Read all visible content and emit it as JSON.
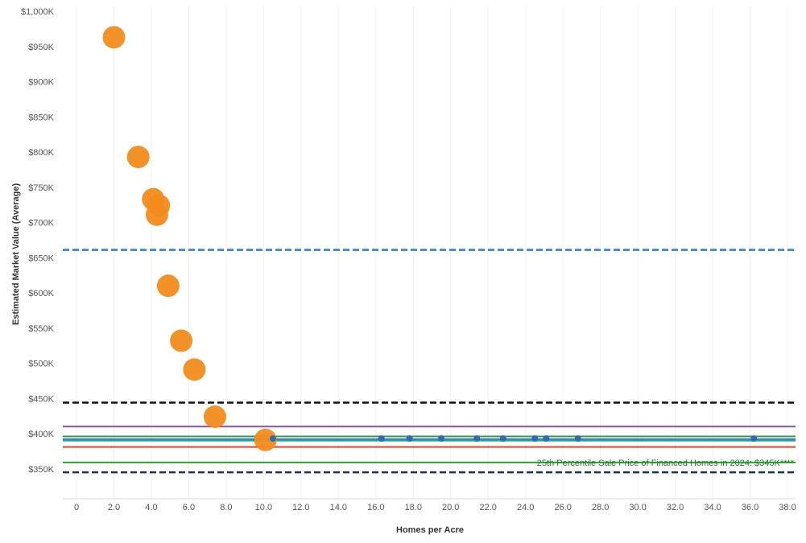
{
  "chart_data": {
    "type": "scatter",
    "xlabel": "Homes per Acre",
    "ylabel": "Estimated Market Value (Average)",
    "xlim": [
      -1,
      38.5
    ],
    "ylim": [
      325,
      1025
    ],
    "x_ticks": [
      0,
      2,
      4,
      6,
      8,
      10,
      12,
      14,
      16,
      18,
      20,
      22,
      24,
      26,
      28,
      30,
      32,
      34,
      36,
      38
    ],
    "x_tick_labels": [
      "0",
      "2.0",
      "4.0",
      "6.0",
      "8.0",
      "10.0",
      "12.0",
      "14.0",
      "16.0",
      "18.0",
      "20.0",
      "22.0",
      "24.0",
      "26.0",
      "28.0",
      "30.0",
      "32.0",
      "34.0",
      "36.0",
      "38.0"
    ],
    "y_ticks": [
      350,
      400,
      450,
      500,
      550,
      600,
      650,
      700,
      750,
      800,
      850,
      900,
      950,
      1000
    ],
    "y_tick_labels": [
      "$350K",
      "$400K",
      "$450K",
      "$500K",
      "$550K",
      "$600K",
      "$650K",
      "$700K",
      "$750K",
      "$800K",
      "$850K",
      "$900K",
      "$950K",
      "$1,000K"
    ],
    "grid": "vertical light lines",
    "legend": "none",
    "series": [
      {
        "color": "#f28c1e",
        "marker": "large circle",
        "points": [
          {
            "x": 2.0,
            "y": 963
          },
          {
            "x": 3.3,
            "y": 793
          },
          {
            "x": 4.1,
            "y": 733
          },
          {
            "x": 4.4,
            "y": 724
          },
          {
            "x": 4.3,
            "y": 711
          },
          {
            "x": 4.9,
            "y": 610
          },
          {
            "x": 5.6,
            "y": 532
          },
          {
            "x": 6.3,
            "y": 491
          },
          {
            "x": 7.4,
            "y": 424
          },
          {
            "x": 10.1,
            "y": 391
          }
        ]
      },
      {
        "color": "#2a6db5",
        "marker": "small circle",
        "points": [
          {
            "x": 10.5,
            "y": 393
          },
          {
            "x": 16.3,
            "y": 393
          },
          {
            "x": 17.8,
            "y": 393
          },
          {
            "x": 19.5,
            "y": 393
          },
          {
            "x": 21.4,
            "y": 393
          },
          {
            "x": 22.8,
            "y": 393
          },
          {
            "x": 24.5,
            "y": 393
          },
          {
            "x": 25.1,
            "y": 393
          },
          {
            "x": 26.8,
            "y": 393
          },
          {
            "x": 36.2,
            "y": 393
          }
        ]
      }
    ],
    "reference_lines": [
      {
        "y": 661,
        "color": "#2a7fcf",
        "style": "dashed",
        "label": ""
      },
      {
        "y": 444,
        "color": "#111111",
        "style": "dashed",
        "label": ""
      },
      {
        "y": 410,
        "color": "#8e4fb5",
        "style": "solid",
        "label": ""
      },
      {
        "y": 396,
        "color": "#2e9a52",
        "style": "solid",
        "label": ""
      },
      {
        "y": 392,
        "color": "#2a7fcf",
        "style": "solid",
        "label": ""
      },
      {
        "y": 390,
        "color": "#26a69a",
        "style": "solid",
        "label": ""
      },
      {
        "y": 381,
        "color": "#e0452c",
        "style": "solid",
        "label": ""
      },
      {
        "y": 359,
        "color": "#2ca02c",
        "style": "solid",
        "label": "25th Percentile Sale Price of Financed Homes in 2024: $345K****"
      },
      {
        "y": 345,
        "color": "#1f2f5c",
        "style": "dashed",
        "label": ""
      }
    ]
  }
}
